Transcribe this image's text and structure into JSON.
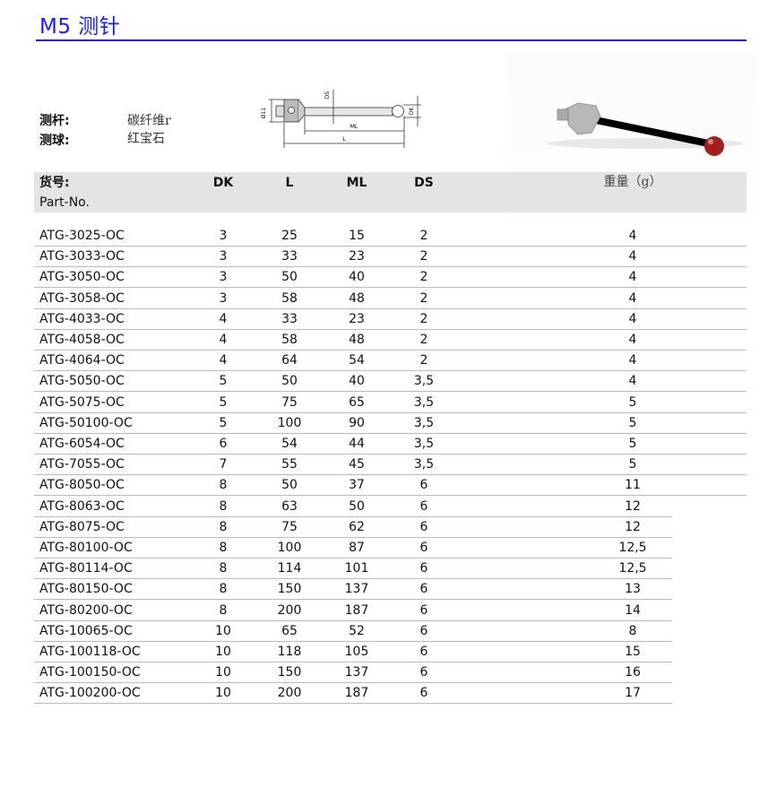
{
  "title": "M5 测针",
  "specs": [
    {
      "label": "测杆:",
      "value": "碳纤维r"
    },
    {
      "label": "测球:",
      "value": "红宝石"
    }
  ],
  "diagram_labels": {
    "diameter": "Ø11",
    "ds": "DS",
    "dk": "DK",
    "ml": "ML",
    "l": "L"
  },
  "table": {
    "headers": {
      "part_cn": "货号:",
      "part_en": "Part-No.",
      "dk": "DK",
      "l": "L",
      "ml": "ML",
      "ds": "DS",
      "weight": "重量（g）"
    },
    "rows": [
      [
        "ATG-3025-OC",
        "3",
        "25",
        "15",
        "2",
        "4"
      ],
      [
        "ATG-3033-OC",
        "3",
        "33",
        "23",
        "2",
        "4"
      ],
      [
        "ATG-3050-OC",
        "3",
        "50",
        "40",
        "2",
        "4"
      ],
      [
        "ATG-3058-OC",
        "3",
        "58",
        "48",
        "2",
        "4"
      ],
      [
        "ATG-4033-OC",
        "4",
        "33",
        "23",
        "2",
        "4"
      ],
      [
        "ATG-4058-OC",
        "4",
        "58",
        "48",
        "2",
        "4"
      ],
      [
        "ATG-4064-OC",
        "4",
        "64",
        "54",
        "2",
        "4"
      ],
      [
        "ATG-5050-OC",
        "5",
        "50",
        "40",
        "3,5",
        "4"
      ],
      [
        "ATG-5075-OC",
        "5",
        "75",
        "65",
        "3,5",
        "5"
      ],
      [
        "ATG-50100-OC",
        "5",
        "100",
        "90",
        "3,5",
        "5"
      ],
      [
        "ATG-6054-OC",
        "6",
        "54",
        "44",
        "3,5",
        "5"
      ],
      [
        "ATG-7055-OC",
        "7",
        "55",
        "45",
        "3,5",
        "5"
      ],
      [
        "ATG-8050-OC",
        "8",
        "50",
        "37",
        "6",
        "11"
      ],
      [
        "ATG-8063-OC",
        "8",
        "63",
        "50",
        "6",
        "12"
      ],
      [
        "ATG-8075-OC",
        "8",
        "75",
        "62",
        "6",
        "12"
      ],
      [
        "ATG-80100-OC",
        "8",
        "100",
        "87",
        "6",
        "12,5"
      ],
      [
        "ATG-80114-OC",
        "8",
        "114",
        "101",
        "6",
        "12,5"
      ],
      [
        "ATG-80150-OC",
        "8",
        "150",
        "137",
        "6",
        "13"
      ],
      [
        "ATG-80200-OC",
        "8",
        "200",
        "187",
        "6",
        "14"
      ],
      [
        "ATG-10065-OC",
        "10",
        "65",
        "52",
        "6",
        "8"
      ],
      [
        "ATG-100118-OC",
        "10",
        "118",
        "105",
        "6",
        "15"
      ],
      [
        "ATG-100150-OC",
        "10",
        "150",
        "137",
        "6",
        "16"
      ],
      [
        "ATG-100200-OC",
        "10",
        "200",
        "187",
        "6",
        "17"
      ]
    ]
  },
  "colors": {
    "title": "#1a1aff",
    "header_band": "#e4e4e4",
    "ruby": "#a02020"
  }
}
